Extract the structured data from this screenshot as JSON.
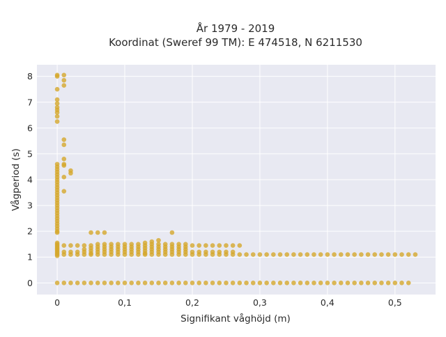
{
  "chart_data": {
    "type": "scatter",
    "title": [
      "År 1979 - 2019",
      "Koordinat (Sweref 99 TM): E 474518, N 6211530"
    ],
    "xlabel": "Signifikant våghöjd (m)",
    "ylabel": "Vågperiod (s)",
    "xlim": [
      -0.03,
      0.56
    ],
    "ylim": [
      -0.45,
      8.45
    ],
    "x_ticks": [
      0,
      0.1,
      0.2,
      0.3,
      0.4,
      0.5
    ],
    "x_tick_labels": [
      "0",
      "0,1",
      "0,2",
      "0,3",
      "0,4",
      "0,5"
    ],
    "y_ticks": [
      0,
      1,
      2,
      3,
      4,
      5,
      6,
      7,
      8
    ],
    "y_tick_labels": [
      "0",
      "1",
      "2",
      "3",
      "4",
      "5",
      "6",
      "7",
      "8"
    ],
    "grid": true,
    "plot_background": "#e8e9f2",
    "grid_color": "#ffffff",
    "marker_color": "#d4a82c",
    "series": [
      {
        "points": [
          [
            0,
            8.05
          ],
          [
            0,
            8.0
          ],
          [
            0,
            7.5
          ],
          [
            0,
            7.1
          ],
          [
            0,
            6.95
          ],
          [
            0,
            6.8
          ],
          [
            0,
            6.7
          ],
          [
            0,
            6.6
          ],
          [
            0,
            6.45
          ],
          [
            0,
            6.25
          ],
          [
            0,
            4.6
          ],
          [
            0,
            4.5
          ],
          [
            0,
            4.4
          ],
          [
            0,
            4.3
          ],
          [
            0,
            4.2
          ],
          [
            0,
            4.1
          ],
          [
            0,
            4.0
          ],
          [
            0,
            3.9
          ],
          [
            0,
            3.8
          ],
          [
            0,
            3.7
          ],
          [
            0,
            3.6
          ],
          [
            0,
            3.5
          ],
          [
            0,
            3.4
          ],
          [
            0,
            3.3
          ],
          [
            0,
            3.2
          ],
          [
            0,
            3.1
          ],
          [
            0,
            3.0
          ],
          [
            0,
            2.9
          ],
          [
            0,
            2.8
          ],
          [
            0,
            2.7
          ],
          [
            0,
            2.6
          ],
          [
            0,
            2.5
          ],
          [
            0,
            2.4
          ],
          [
            0,
            2.3
          ],
          [
            0,
            2.2
          ],
          [
            0,
            2.1
          ],
          [
            0,
            2.0
          ],
          [
            0,
            1.95
          ],
          [
            0,
            1.55
          ],
          [
            0,
            1.5
          ],
          [
            0,
            1.45
          ],
          [
            0,
            1.4
          ],
          [
            0,
            1.35
          ],
          [
            0,
            1.3
          ],
          [
            0,
            1.25
          ],
          [
            0,
            1.2
          ],
          [
            0,
            1.15
          ],
          [
            0,
            1.1
          ],
          [
            0,
            1.05
          ],
          [
            0.01,
            8.05
          ],
          [
            0.01,
            7.85
          ],
          [
            0.01,
            7.65
          ],
          [
            0.01,
            5.55
          ],
          [
            0.01,
            5.35
          ],
          [
            0.01,
            4.8
          ],
          [
            0.01,
            4.6
          ],
          [
            0.01,
            4.55
          ],
          [
            0.01,
            4.1
          ],
          [
            0.01,
            3.55
          ],
          [
            0.01,
            1.45
          ],
          [
            0.01,
            1.2
          ],
          [
            0.01,
            1.1
          ],
          [
            0.02,
            4.35
          ],
          [
            0.02,
            4.25
          ],
          [
            0.02,
            1.45
          ],
          [
            0.02,
            1.2
          ],
          [
            0.02,
            1.1
          ],
          [
            0.03,
            1.45
          ],
          [
            0.03,
            1.2
          ],
          [
            0.03,
            1.1
          ],
          [
            0.04,
            1.45
          ],
          [
            0.04,
            1.3
          ],
          [
            0.04,
            1.2
          ],
          [
            0.04,
            1.1
          ],
          [
            0.05,
            1.95
          ],
          [
            0.05,
            1.45
          ],
          [
            0.05,
            1.35
          ],
          [
            0.05,
            1.25
          ],
          [
            0.05,
            1.15
          ],
          [
            0.05,
            1.1
          ],
          [
            0.06,
            1.95
          ],
          [
            0.06,
            1.5
          ],
          [
            0.06,
            1.4
          ],
          [
            0.06,
            1.3
          ],
          [
            0.06,
            1.2
          ],
          [
            0.06,
            1.1
          ],
          [
            0.07,
            1.95
          ],
          [
            0.07,
            1.5
          ],
          [
            0.07,
            1.4
          ],
          [
            0.07,
            1.3
          ],
          [
            0.07,
            1.2
          ],
          [
            0.07,
            1.1
          ],
          [
            0.08,
            1.5
          ],
          [
            0.08,
            1.4
          ],
          [
            0.08,
            1.3
          ],
          [
            0.08,
            1.2
          ],
          [
            0.08,
            1.1
          ],
          [
            0.09,
            1.5
          ],
          [
            0.09,
            1.4
          ],
          [
            0.09,
            1.3
          ],
          [
            0.09,
            1.2
          ],
          [
            0.09,
            1.1
          ],
          [
            0.1,
            1.5
          ],
          [
            0.1,
            1.4
          ],
          [
            0.1,
            1.3
          ],
          [
            0.1,
            1.2
          ],
          [
            0.1,
            1.1
          ],
          [
            0.11,
            1.5
          ],
          [
            0.11,
            1.4
          ],
          [
            0.11,
            1.3
          ],
          [
            0.11,
            1.2
          ],
          [
            0.11,
            1.1
          ],
          [
            0.12,
            1.5
          ],
          [
            0.12,
            1.4
          ],
          [
            0.12,
            1.3
          ],
          [
            0.12,
            1.2
          ],
          [
            0.12,
            1.1
          ],
          [
            0.13,
            1.55
          ],
          [
            0.13,
            1.45
          ],
          [
            0.13,
            1.35
          ],
          [
            0.13,
            1.25
          ],
          [
            0.13,
            1.15
          ],
          [
            0.13,
            1.1
          ],
          [
            0.14,
            1.6
          ],
          [
            0.14,
            1.5
          ],
          [
            0.14,
            1.4
          ],
          [
            0.14,
            1.3
          ],
          [
            0.14,
            1.2
          ],
          [
            0.14,
            1.1
          ],
          [
            0.15,
            1.65
          ],
          [
            0.15,
            1.5
          ],
          [
            0.15,
            1.4
          ],
          [
            0.15,
            1.3
          ],
          [
            0.15,
            1.2
          ],
          [
            0.15,
            1.1
          ],
          [
            0.16,
            1.5
          ],
          [
            0.16,
            1.4
          ],
          [
            0.16,
            1.3
          ],
          [
            0.16,
            1.2
          ],
          [
            0.16,
            1.1
          ],
          [
            0.17,
            1.95
          ],
          [
            0.17,
            1.5
          ],
          [
            0.17,
            1.4
          ],
          [
            0.17,
            1.3
          ],
          [
            0.17,
            1.2
          ],
          [
            0.17,
            1.1
          ],
          [
            0.18,
            1.5
          ],
          [
            0.18,
            1.4
          ],
          [
            0.18,
            1.3
          ],
          [
            0.18,
            1.2
          ],
          [
            0.18,
            1.1
          ],
          [
            0.19,
            1.5
          ],
          [
            0.19,
            1.4
          ],
          [
            0.19,
            1.3
          ],
          [
            0.19,
            1.2
          ],
          [
            0.19,
            1.1
          ],
          [
            0.2,
            1.45
          ],
          [
            0.2,
            1.2
          ],
          [
            0.2,
            1.1
          ],
          [
            0.21,
            1.45
          ],
          [
            0.21,
            1.2
          ],
          [
            0.21,
            1.1
          ],
          [
            0.22,
            1.45
          ],
          [
            0.22,
            1.2
          ],
          [
            0.22,
            1.1
          ],
          [
            0.23,
            1.45
          ],
          [
            0.23,
            1.2
          ],
          [
            0.23,
            1.1
          ],
          [
            0.24,
            1.45
          ],
          [
            0.24,
            1.2
          ],
          [
            0.24,
            1.1
          ],
          [
            0.25,
            1.45
          ],
          [
            0.25,
            1.2
          ],
          [
            0.25,
            1.1
          ],
          [
            0.26,
            1.45
          ],
          [
            0.26,
            1.2
          ],
          [
            0.26,
            1.1
          ],
          [
            0.27,
            1.45
          ],
          [
            0.27,
            1.1
          ],
          [
            0.28,
            1.1
          ],
          [
            0.29,
            1.1
          ],
          [
            0.3,
            1.1
          ],
          [
            0.31,
            1.1
          ],
          [
            0.32,
            1.1
          ],
          [
            0.33,
            1.1
          ],
          [
            0.34,
            1.1
          ],
          [
            0.35,
            1.1
          ],
          [
            0.36,
            1.1
          ],
          [
            0.37,
            1.1
          ],
          [
            0.38,
            1.1
          ],
          [
            0.39,
            1.1
          ],
          [
            0.4,
            1.1
          ],
          [
            0.41,
            1.1
          ],
          [
            0.42,
            1.1
          ],
          [
            0.43,
            1.1
          ],
          [
            0.44,
            1.1
          ],
          [
            0.45,
            1.1
          ],
          [
            0.46,
            1.1
          ],
          [
            0.47,
            1.1
          ],
          [
            0.48,
            1.1
          ],
          [
            0.49,
            1.1
          ],
          [
            0.5,
            1.1
          ],
          [
            0.51,
            1.1
          ],
          [
            0.52,
            1.1
          ],
          [
            0.53,
            1.1
          ],
          [
            0,
            0
          ],
          [
            0.01,
            0
          ],
          [
            0.02,
            0
          ],
          [
            0.03,
            0
          ],
          [
            0.04,
            0
          ],
          [
            0.05,
            0
          ],
          [
            0.06,
            0
          ],
          [
            0.07,
            0
          ],
          [
            0.08,
            0
          ],
          [
            0.09,
            0
          ],
          [
            0.1,
            0
          ],
          [
            0.11,
            0
          ],
          [
            0.12,
            0
          ],
          [
            0.13,
            0
          ],
          [
            0.14,
            0
          ],
          [
            0.15,
            0
          ],
          [
            0.16,
            0
          ],
          [
            0.17,
            0
          ],
          [
            0.18,
            0
          ],
          [
            0.19,
            0
          ],
          [
            0.2,
            0
          ],
          [
            0.21,
            0
          ],
          [
            0.22,
            0
          ],
          [
            0.23,
            0
          ],
          [
            0.24,
            0
          ],
          [
            0.25,
            0
          ],
          [
            0.26,
            0
          ],
          [
            0.27,
            0
          ],
          [
            0.28,
            0
          ],
          [
            0.29,
            0
          ],
          [
            0.3,
            0
          ],
          [
            0.31,
            0
          ],
          [
            0.32,
            0
          ],
          [
            0.33,
            0
          ],
          [
            0.34,
            0
          ],
          [
            0.35,
            0
          ],
          [
            0.36,
            0
          ],
          [
            0.37,
            0
          ],
          [
            0.38,
            0
          ],
          [
            0.39,
            0
          ],
          [
            0.4,
            0
          ],
          [
            0.41,
            0
          ],
          [
            0.42,
            0
          ],
          [
            0.43,
            0
          ],
          [
            0.44,
            0
          ],
          [
            0.45,
            0
          ],
          [
            0.46,
            0
          ],
          [
            0.47,
            0
          ],
          [
            0.48,
            0
          ],
          [
            0.49,
            0
          ],
          [
            0.5,
            0
          ],
          [
            0.51,
            0
          ],
          [
            0.52,
            0
          ]
        ]
      }
    ]
  }
}
